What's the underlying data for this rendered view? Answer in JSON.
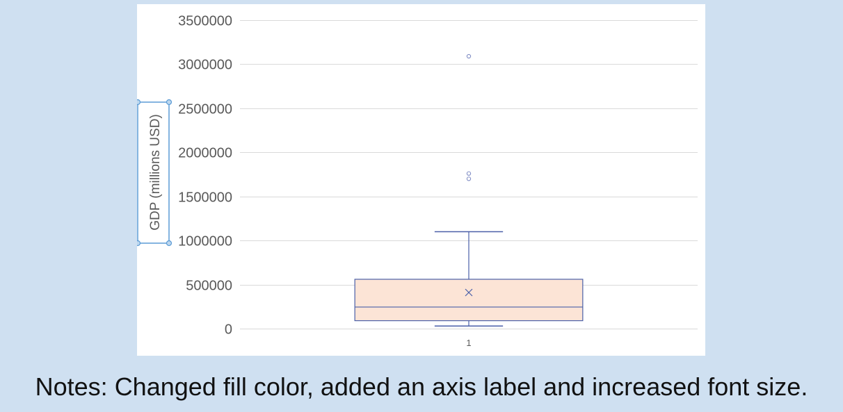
{
  "chart_data": {
    "type": "box",
    "title": "",
    "xlabel": "",
    "ylabel": "GDP (millions USD)",
    "ylim": [
      0,
      3500000
    ],
    "yticks": [
      0,
      500000,
      1000000,
      1500000,
      2000000,
      2500000,
      3000000,
      3500000
    ],
    "ytick_labels": [
      "0",
      "500000",
      "1000000",
      "1500000",
      "2000000",
      "2500000",
      "3000000",
      "3500000"
    ],
    "categories": [
      "1"
    ],
    "grid": true,
    "legend": "none",
    "boxes": [
      {
        "category": "1",
        "whisker_low": 30000,
        "q1": 90000,
        "median": 245000,
        "q3": 560000,
        "whisker_high": 1100000,
        "mean": 410000,
        "outliers": [
          1700000,
          1760000,
          3090000
        ]
      }
    ],
    "colors": {
      "box_fill": "#fce4d6",
      "box_stroke": "#4a5fa8",
      "gridline": "#d9d9d9",
      "axis_label_frame": "#5b9bd5"
    }
  },
  "notes": "Notes: Changed fill color, added an axis label and increased font size."
}
